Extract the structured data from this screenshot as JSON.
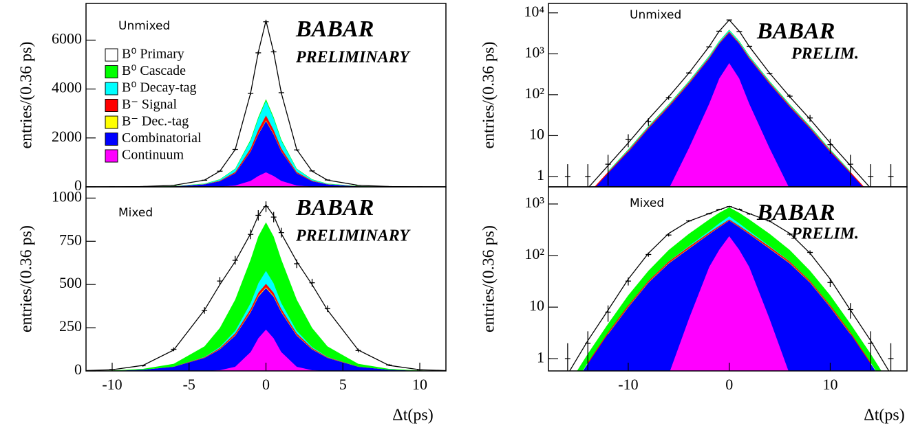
{
  "chart_data": [
    {
      "type": "stacked_area",
      "label": "Unmixed",
      "logo": "BABAR",
      "logo_sub": "PRELIMINARY",
      "ylabel": "entries/(0.36 ps)",
      "log_scale": false,
      "legend": "top left",
      "xlim": [
        -11.7,
        11.7
      ],
      "ylim": [
        0,
        7500
      ],
      "yticks": [
        0,
        2000,
        4000,
        6000
      ],
      "x": [
        -12,
        -10,
        -8,
        -6,
        -4,
        -3,
        -2,
        -1,
        -0.5,
        0,
        0.5,
        1,
        2,
        3,
        4,
        6,
        8,
        10,
        12
      ],
      "series": [
        {
          "name": "Continuum",
          "color": "#ff00ff",
          "values": [
            0,
            0,
            0,
            1,
            5,
            15,
            60,
            250,
            450,
            600,
            450,
            250,
            60,
            15,
            5,
            1,
            0,
            0,
            0
          ]
        },
        {
          "name": "Combinatorial",
          "color": "#0000ff",
          "values": [
            0,
            2,
            6,
            25,
            100,
            220,
            500,
            1200,
            1700,
            2100,
            1700,
            1200,
            500,
            220,
            100,
            25,
            6,
            2,
            0
          ]
        },
        {
          "name": "B⁻ Dec.-tag",
          "color": "#ffff00",
          "values": [
            0,
            0,
            0,
            0,
            1,
            3,
            6,
            16,
            24,
            30,
            24,
            16,
            6,
            3,
            1,
            0,
            0,
            0,
            0
          ]
        },
        {
          "name": "B⁻ Signal",
          "color": "#ff0000",
          "values": [
            0,
            0,
            0,
            2,
            8,
            20,
            45,
            110,
            160,
            200,
            160,
            110,
            45,
            20,
            8,
            2,
            0,
            0,
            0
          ]
        },
        {
          "name": "B⁰ Decay-tag",
          "color": "#00ffff",
          "values": [
            0,
            0,
            1,
            4,
            18,
            45,
            120,
            320,
            470,
            600,
            470,
            320,
            120,
            45,
            18,
            4,
            1,
            0,
            0
          ]
        },
        {
          "name": "B⁰ Cascade",
          "color": "#00ff00",
          "values": [
            0,
            0,
            0,
            1,
            2,
            6,
            14,
            34,
            48,
            60,
            48,
            34,
            14,
            6,
            2,
            1,
            0,
            0,
            0
          ]
        },
        {
          "name": "B⁰ Primary",
          "color": "#ffffff",
          "values": [
            0,
            1,
            6,
            30,
            140,
            330,
            780,
            1900,
            2650,
            3200,
            2650,
            1900,
            780,
            330,
            140,
            30,
            6,
            1,
            0
          ]
        }
      ],
      "data": {
        "values": [
          3,
          4,
          14,
          60,
          270,
          640,
          1530,
          3820,
          5480,
          6750,
          5520,
          3850,
          1510,
          650,
          280,
          62,
          12,
          2,
          1
        ],
        "errors": [
          2,
          2,
          4,
          8,
          16,
          25,
          39,
          62,
          74,
          82,
          74,
          62,
          39,
          25,
          17,
          8,
          3,
          1,
          1
        ]
      }
    },
    {
      "type": "stacked_area",
      "label": "Mixed",
      "logo": "BABAR",
      "logo_sub": "PRELIMINARY",
      "ylabel": "entries/(0.36 ps)",
      "xlabel": "Δt(ps)",
      "log_scale": false,
      "xlim": [
        -11.7,
        11.7
      ],
      "ylim": [
        0,
        1065
      ],
      "yticks": [
        0,
        250,
        500,
        750,
        1000
      ],
      "xticks": [
        -10,
        -5,
        0,
        5,
        10
      ],
      "x": [
        -12,
        -10,
        -8,
        -6,
        -4,
        -3,
        -2,
        -1,
        -0.5,
        0,
        0.5,
        1,
        2,
        3,
        4,
        6,
        8,
        10,
        12
      ],
      "series": [
        {
          "color": "#ff00ff",
          "values": [
            0,
            0,
            0,
            0,
            1,
            5,
            25,
            110,
            190,
            240,
            190,
            110,
            25,
            5,
            1,
            0,
            0,
            0,
            0
          ]
        },
        {
          "color": "#0000ff",
          "values": [
            0,
            2,
            8,
            25,
            75,
            120,
            180,
            230,
            240,
            240,
            240,
            230,
            180,
            120,
            75,
            25,
            8,
            2,
            0
          ]
        },
        {
          "color": "#ffff00",
          "values": [
            0,
            0,
            0,
            0,
            1,
            2,
            3,
            4,
            5,
            5,
            5,
            4,
            3,
            2,
            1,
            0,
            0,
            0,
            0
          ]
        },
        {
          "color": "#ff0000",
          "values": [
            0,
            0,
            0,
            1,
            3,
            6,
            10,
            15,
            18,
            20,
            18,
            15,
            10,
            6,
            3,
            1,
            0,
            0,
            0
          ]
        },
        {
          "color": "#00ffff",
          "values": [
            0,
            0,
            0,
            0,
            2,
            6,
            15,
            35,
            55,
            75,
            55,
            35,
            15,
            6,
            2,
            0,
            0,
            0,
            0
          ]
        },
        {
          "color": "#00ff00",
          "values": [
            0,
            1,
            4,
            15,
            60,
            110,
            180,
            250,
            270,
            280,
            270,
            250,
            180,
            110,
            60,
            15,
            4,
            1,
            0
          ]
        },
        {
          "color": "#ffffff",
          "values": [
            1,
            4,
            20,
            80,
            210,
            250,
            220,
            150,
            120,
            100,
            120,
            150,
            220,
            250,
            210,
            80,
            20,
            4,
            1
          ]
        }
      ],
      "data": {
        "values": [
          2,
          8,
          30,
          125,
          350,
          520,
          640,
          790,
          900,
          950,
          890,
          800,
          620,
          510,
          360,
          118,
          34,
          6,
          1
        ],
        "errors": [
          1,
          3,
          5,
          11,
          19,
          23,
          25,
          28,
          30,
          31,
          30,
          28,
          25,
          23,
          19,
          11,
          6,
          2,
          1
        ]
      }
    },
    {
      "type": "stacked_area",
      "label": "Unmixed",
      "logo": "BABAR",
      "logo_sub": "PRELIM.",
      "ylabel": "entries/(0.36 ps)",
      "log_scale": true,
      "xlim": [
        -17.9,
        17.6
      ],
      "ylim": [
        0.56,
        17000
      ],
      "yticks": [
        1,
        10,
        {
          "value": 100,
          "label": "10²"
        },
        {
          "value": 1000,
          "label": "10³"
        },
        {
          "value": 10000,
          "label": "10⁴"
        }
      ],
      "x": [
        -18,
        -16,
        -14,
        -12,
        -10,
        -8,
        -6,
        -4,
        -2,
        -1,
        0,
        1,
        2,
        4,
        6,
        8,
        10,
        12,
        14,
        16,
        18
      ],
      "series": [
        {
          "color": "#ff00ff",
          "values": [
            null,
            null,
            null,
            null,
            null,
            null,
            0.5,
            5,
            60,
            250,
            600,
            250,
            60,
            5,
            0.5,
            null,
            null,
            null,
            null,
            null,
            null
          ]
        },
        {
          "color": "#0000ff",
          "values": [
            0.03,
            0.1,
            0.35,
            1.2,
            4,
            15,
            50,
            180,
            700,
            1500,
            2700,
            1500,
            700,
            180,
            50,
            15,
            4,
            1.2,
            0.35,
            0.1,
            0.03
          ]
        },
        {
          "color": "#ffff00",
          "values": [
            null,
            null,
            null,
            null,
            0.04,
            0.15,
            0.5,
            2,
            7,
            15,
            30,
            15,
            7,
            2,
            0.5,
            0.15,
            0.04,
            null,
            null,
            null,
            null
          ]
        },
        {
          "color": "#ff0000",
          "values": [
            null,
            null,
            0.02,
            0.08,
            0.3,
            1,
            3.5,
            13,
            50,
            100,
            200,
            100,
            50,
            13,
            3.5,
            1,
            0.3,
            0.08,
            0.02,
            null,
            null
          ]
        },
        {
          "color": "#00ffff",
          "values": [
            null,
            null,
            null,
            0.05,
            0.2,
            0.8,
            3,
            12,
            60,
            150,
            300,
            150,
            60,
            12,
            3,
            0.8,
            0.2,
            0.05,
            null,
            null,
            null
          ]
        },
        {
          "color": "#00ff00",
          "values": [
            null,
            null,
            null,
            0.02,
            0.08,
            0.3,
            1,
            4,
            15,
            30,
            60,
            30,
            15,
            4,
            1,
            0.3,
            0.08,
            0.02,
            null,
            null,
            null
          ]
        },
        {
          "color": "#ffffff",
          "values": [
            0.01,
            0.04,
            0.15,
            0.5,
            2,
            8,
            30,
            120,
            600,
            1500,
            2800,
            1500,
            600,
            120,
            30,
            8,
            2,
            0.5,
            0.15,
            0.04,
            0.01
          ]
        }
      ],
      "data": {
        "values": [
          null,
          1,
          1,
          2,
          8,
          22,
          85,
          340,
          1480,
          3560,
          6700,
          3500,
          1520,
          330,
          92,
          27,
          6,
          2,
          1,
          1,
          null
        ],
        "errors": [
          null,
          1,
          1,
          1.4,
          2.8,
          4.7,
          9.2,
          18,
          38,
          60,
          82,
          59,
          39,
          18,
          9.6,
          5.2,
          2.4,
          1.4,
          1,
          1,
          null
        ]
      }
    },
    {
      "type": "stacked_area",
      "label": "Mixed",
      "logo": "BABAR",
      "logo_sub": "PRELIM.",
      "ylabel": "entries/(0.36 ps)",
      "xlabel": "Δt(ps)",
      "log_scale": true,
      "xlim": [
        -17.9,
        17.6
      ],
      "ylim": [
        0.58,
        2150
      ],
      "yticks": [
        1,
        10,
        {
          "value": 100,
          "label": "10²"
        },
        {
          "value": 1000,
          "label": "10³"
        }
      ],
      "xticks": [
        -10,
        0,
        10
      ],
      "x": [
        -18,
        -16,
        -14,
        -12,
        -10,
        -8,
        -6,
        -4,
        -2,
        -1,
        0,
        1,
        2,
        4,
        6,
        8,
        10,
        12,
        14,
        16,
        18
      ],
      "series": [
        {
          "color": "#ff00ff",
          "values": [
            null,
            null,
            null,
            null,
            null,
            null,
            0.5,
            6,
            60,
            130,
            240,
            130,
            60,
            6,
            0.5,
            null,
            null,
            null,
            null,
            null,
            null
          ]
        },
        {
          "color": "#0000ff",
          "values": [
            0.05,
            0.2,
            0.8,
            3,
            10,
            30,
            70,
            130,
            200,
            225,
            240,
            225,
            200,
            130,
            70,
            30,
            10,
            3,
            0.8,
            0.2,
            0.05
          ]
        },
        {
          "color": "#ffff00",
          "values": [
            null,
            null,
            null,
            0.06,
            0.2,
            0.6,
            1.5,
            3,
            4,
            4.5,
            5,
            4.5,
            4,
            3,
            1.5,
            0.6,
            0.2,
            0.06,
            null,
            null,
            null
          ]
        },
        {
          "color": "#ff0000",
          "values": [
            null,
            null,
            0.05,
            0.2,
            0.7,
            2,
            5,
            10,
            15,
            18,
            20,
            18,
            15,
            10,
            5,
            2,
            0.7,
            0.2,
            0.05,
            null,
            null
          ]
        },
        {
          "color": "#00ffff",
          "values": [
            null,
            null,
            null,
            null,
            0.05,
            0.2,
            1,
            5,
            20,
            45,
            75,
            45,
            20,
            5,
            1,
            0.2,
            0.05,
            null,
            null,
            null,
            null
          ]
        },
        {
          "color": "#00ff00",
          "values": [
            null,
            0.1,
            0.4,
            1.5,
            6,
            18,
            50,
            110,
            200,
            250,
            280,
            250,
            200,
            110,
            50,
            18,
            6,
            1.5,
            0.4,
            0.1,
            null
          ]
        },
        {
          "color": "#ffffff",
          "values": [
            0.05,
            0.2,
            1,
            4,
            18,
            60,
            140,
            200,
            150,
            100,
            40,
            100,
            150,
            200,
            140,
            60,
            18,
            4,
            1,
            0.2,
            0.05
          ]
        }
      ],
      "data": {
        "values": [
          1,
          1,
          2,
          8,
          32,
          105,
          250,
          470,
          650,
          780,
          890,
          790,
          640,
          470,
          260,
          115,
          30,
          9,
          2,
          1,
          null
        ],
        "errors": [
          1,
          1,
          1.4,
          2.8,
          5.7,
          10,
          16,
          22,
          25,
          28,
          30,
          28,
          25,
          22,
          16,
          11,
          5.5,
          3,
          1.4,
          1,
          null
        ]
      }
    }
  ]
}
